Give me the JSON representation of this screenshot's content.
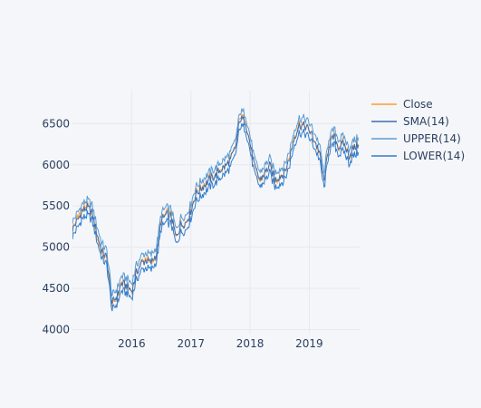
{
  "chart_data": {
    "type": "line",
    "title": "",
    "xlabel": "",
    "ylabel": "",
    "xlim": [
      2015.0,
      2019.85
    ],
    "ylim": [
      3950,
      6900
    ],
    "x_ticks": [
      {
        "value": 2016,
        "label": "2016"
      },
      {
        "value": 2017,
        "label": "2017"
      },
      {
        "value": 2018,
        "label": "2018"
      },
      {
        "value": 2019,
        "label": "2019"
      }
    ],
    "y_ticks": [
      {
        "value": 4000,
        "label": "4000"
      },
      {
        "value": 4500,
        "label": "4500"
      },
      {
        "value": 5000,
        "label": "5000"
      },
      {
        "value": 5500,
        "label": "5500"
      },
      {
        "value": 6000,
        "label": "6000"
      },
      {
        "value": 6500,
        "label": "6500"
      }
    ],
    "grid": true,
    "legend_position": "top-right",
    "band_offset": 90,
    "series": [
      {
        "name": "Close",
        "color": "#ff9933",
        "width": 1,
        "x": [
          2015.0,
          2015.08,
          2015.17,
          2015.25,
          2015.33,
          2015.42,
          2015.5,
          2015.58,
          2015.67,
          2015.75,
          2015.83,
          2015.92,
          2016.0,
          2016.08,
          2016.17,
          2016.25,
          2016.33,
          2016.42,
          2016.5,
          2016.58,
          2016.67,
          2016.75,
          2016.83,
          2016.92,
          2017.0,
          2017.08,
          2017.17,
          2017.25,
          2017.33,
          2017.42,
          2017.5,
          2017.58,
          2017.67,
          2017.75,
          2017.83,
          2017.92,
          2018.0,
          2018.08,
          2018.17,
          2018.25,
          2018.33,
          2018.42,
          2018.5,
          2018.58,
          2018.67,
          2018.75,
          2018.83,
          2018.92,
          2019.0,
          2019.08,
          2019.17,
          2019.25,
          2019.33,
          2019.42,
          2019.5,
          2019.58,
          2019.67,
          2019.75,
          2019.83
        ],
        "y": [
          5210,
          5350,
          5460,
          5500,
          5410,
          5120,
          4920,
          4850,
          4280,
          4380,
          4580,
          4520,
          4450,
          4700,
          4820,
          4850,
          4800,
          4920,
          5350,
          5400,
          5380,
          5100,
          5280,
          5300,
          5450,
          5650,
          5720,
          5780,
          5840,
          5880,
          5950,
          5980,
          6070,
          6210,
          6600,
          6550,
          6250,
          5950,
          5800,
          5900,
          6000,
          5800,
          5860,
          5900,
          6100,
          6350,
          6500,
          6480,
          6420,
          6300,
          6150,
          5780,
          6250,
          6350,
          6200,
          6270,
          6100,
          6200,
          6250
        ]
      },
      {
        "name": "SMA(14)",
        "color": "#3d6fb0",
        "width": 1,
        "x": [
          2015.0,
          2015.08,
          2015.17,
          2015.25,
          2015.33,
          2015.42,
          2015.5,
          2015.58,
          2015.67,
          2015.75,
          2015.83,
          2015.92,
          2016.0,
          2016.08,
          2016.17,
          2016.25,
          2016.33,
          2016.42,
          2016.5,
          2016.58,
          2016.67,
          2016.75,
          2016.83,
          2016.92,
          2017.0,
          2017.08,
          2017.17,
          2017.25,
          2017.33,
          2017.42,
          2017.5,
          2017.58,
          2017.67,
          2017.75,
          2017.83,
          2017.92,
          2018.0,
          2018.08,
          2018.17,
          2018.25,
          2018.33,
          2018.42,
          2018.5,
          2018.58,
          2018.67,
          2018.75,
          2018.83,
          2018.92,
          2019.0,
          2019.08,
          2019.17,
          2019.25,
          2019.33,
          2019.42,
          2019.5,
          2019.58,
          2019.67,
          2019.75,
          2019.83
        ],
        "y": [
          5220,
          5320,
          5440,
          5480,
          5420,
          5150,
          4950,
          4870,
          4320,
          4400,
          4560,
          4530,
          4470,
          4690,
          4810,
          4840,
          4810,
          4920,
          5320,
          5390,
          5370,
          5120,
          5270,
          5300,
          5440,
          5640,
          5710,
          5770,
          5830,
          5870,
          5940,
          5980,
          6060,
          6200,
          6560,
          6530,
          6260,
          5960,
          5820,
          5900,
          5990,
          5820,
          5860,
          5900,
          6090,
          6340,
          6480,
          6470,
          6420,
          6310,
          6160,
          5800,
          6240,
          6340,
          6210,
          6260,
          6110,
          6200,
          6240
        ]
      },
      {
        "name": "UPPER(14)",
        "color": "#5a9bd4",
        "width": 1,
        "x": [
          2015.0,
          2015.08,
          2015.17,
          2015.25,
          2015.33,
          2015.42,
          2015.5,
          2015.58,
          2015.67,
          2015.75,
          2015.83,
          2015.92,
          2016.0,
          2016.08,
          2016.17,
          2016.25,
          2016.33,
          2016.42,
          2016.5,
          2016.58,
          2016.67,
          2016.75,
          2016.83,
          2016.92,
          2017.0,
          2017.08,
          2017.17,
          2017.25,
          2017.33,
          2017.42,
          2017.5,
          2017.58,
          2017.67,
          2017.75,
          2017.83,
          2017.92,
          2018.0,
          2018.08,
          2018.17,
          2018.25,
          2018.33,
          2018.42,
          2018.5,
          2018.58,
          2018.67,
          2018.75,
          2018.83,
          2018.92,
          2019.0,
          2019.08,
          2019.17,
          2019.25,
          2019.33,
          2019.42,
          2019.5,
          2019.58,
          2019.67,
          2019.75,
          2019.83
        ],
        "y": [
          5310,
          5410,
          5530,
          5570,
          5510,
          5240,
          5040,
          4960,
          4410,
          4490,
          4650,
          4620,
          4560,
          4780,
          4900,
          4930,
          4900,
          5010,
          5410,
          5480,
          5460,
          5210,
          5360,
          5390,
          5530,
          5730,
          5800,
          5860,
          5920,
          5960,
          6030,
          6070,
          6150,
          6290,
          6650,
          6620,
          6350,
          6050,
          5910,
          5990,
          6080,
          5910,
          5950,
          5990,
          6180,
          6430,
          6570,
          6560,
          6510,
          6400,
          6250,
          5890,
          6330,
          6430,
          6300,
          6350,
          6200,
          6290,
          6330
        ]
      },
      {
        "name": "LOWER(14)",
        "color": "#2f7dcf",
        "width": 1,
        "x": [
          2015.0,
          2015.08,
          2015.17,
          2015.25,
          2015.33,
          2015.42,
          2015.5,
          2015.58,
          2015.67,
          2015.75,
          2015.83,
          2015.92,
          2016.0,
          2016.08,
          2016.17,
          2016.25,
          2016.33,
          2016.42,
          2016.5,
          2016.58,
          2016.67,
          2016.75,
          2016.83,
          2016.92,
          2017.0,
          2017.08,
          2017.17,
          2017.25,
          2017.33,
          2017.42,
          2017.5,
          2017.58,
          2017.67,
          2017.75,
          2017.83,
          2017.92,
          2018.0,
          2018.08,
          2018.17,
          2018.25,
          2018.33,
          2018.42,
          2018.5,
          2018.58,
          2018.67,
          2018.75,
          2018.83,
          2018.92,
          2019.0,
          2019.08,
          2019.17,
          2019.25,
          2019.33,
          2019.42,
          2019.5,
          2019.58,
          2019.67,
          2019.75,
          2019.83
        ],
        "y": [
          5130,
          5230,
          5350,
          5390,
          5330,
          5060,
          4860,
          4780,
          4230,
          4310,
          4470,
          4440,
          4380,
          4600,
          4720,
          4750,
          4720,
          4830,
          5230,
          5300,
          5280,
          5030,
          5180,
          5210,
          5350,
          5550,
          5620,
          5680,
          5740,
          5780,
          5850,
          5890,
          5970,
          6110,
          6470,
          6440,
          6170,
          5870,
          5730,
          5810,
          5900,
          5730,
          5770,
          5810,
          6000,
          6250,
          6390,
          6380,
          6330,
          6220,
          6070,
          5710,
          6150,
          6250,
          6120,
          6170,
          6020,
          6110,
          6150
        ]
      }
    ]
  }
}
